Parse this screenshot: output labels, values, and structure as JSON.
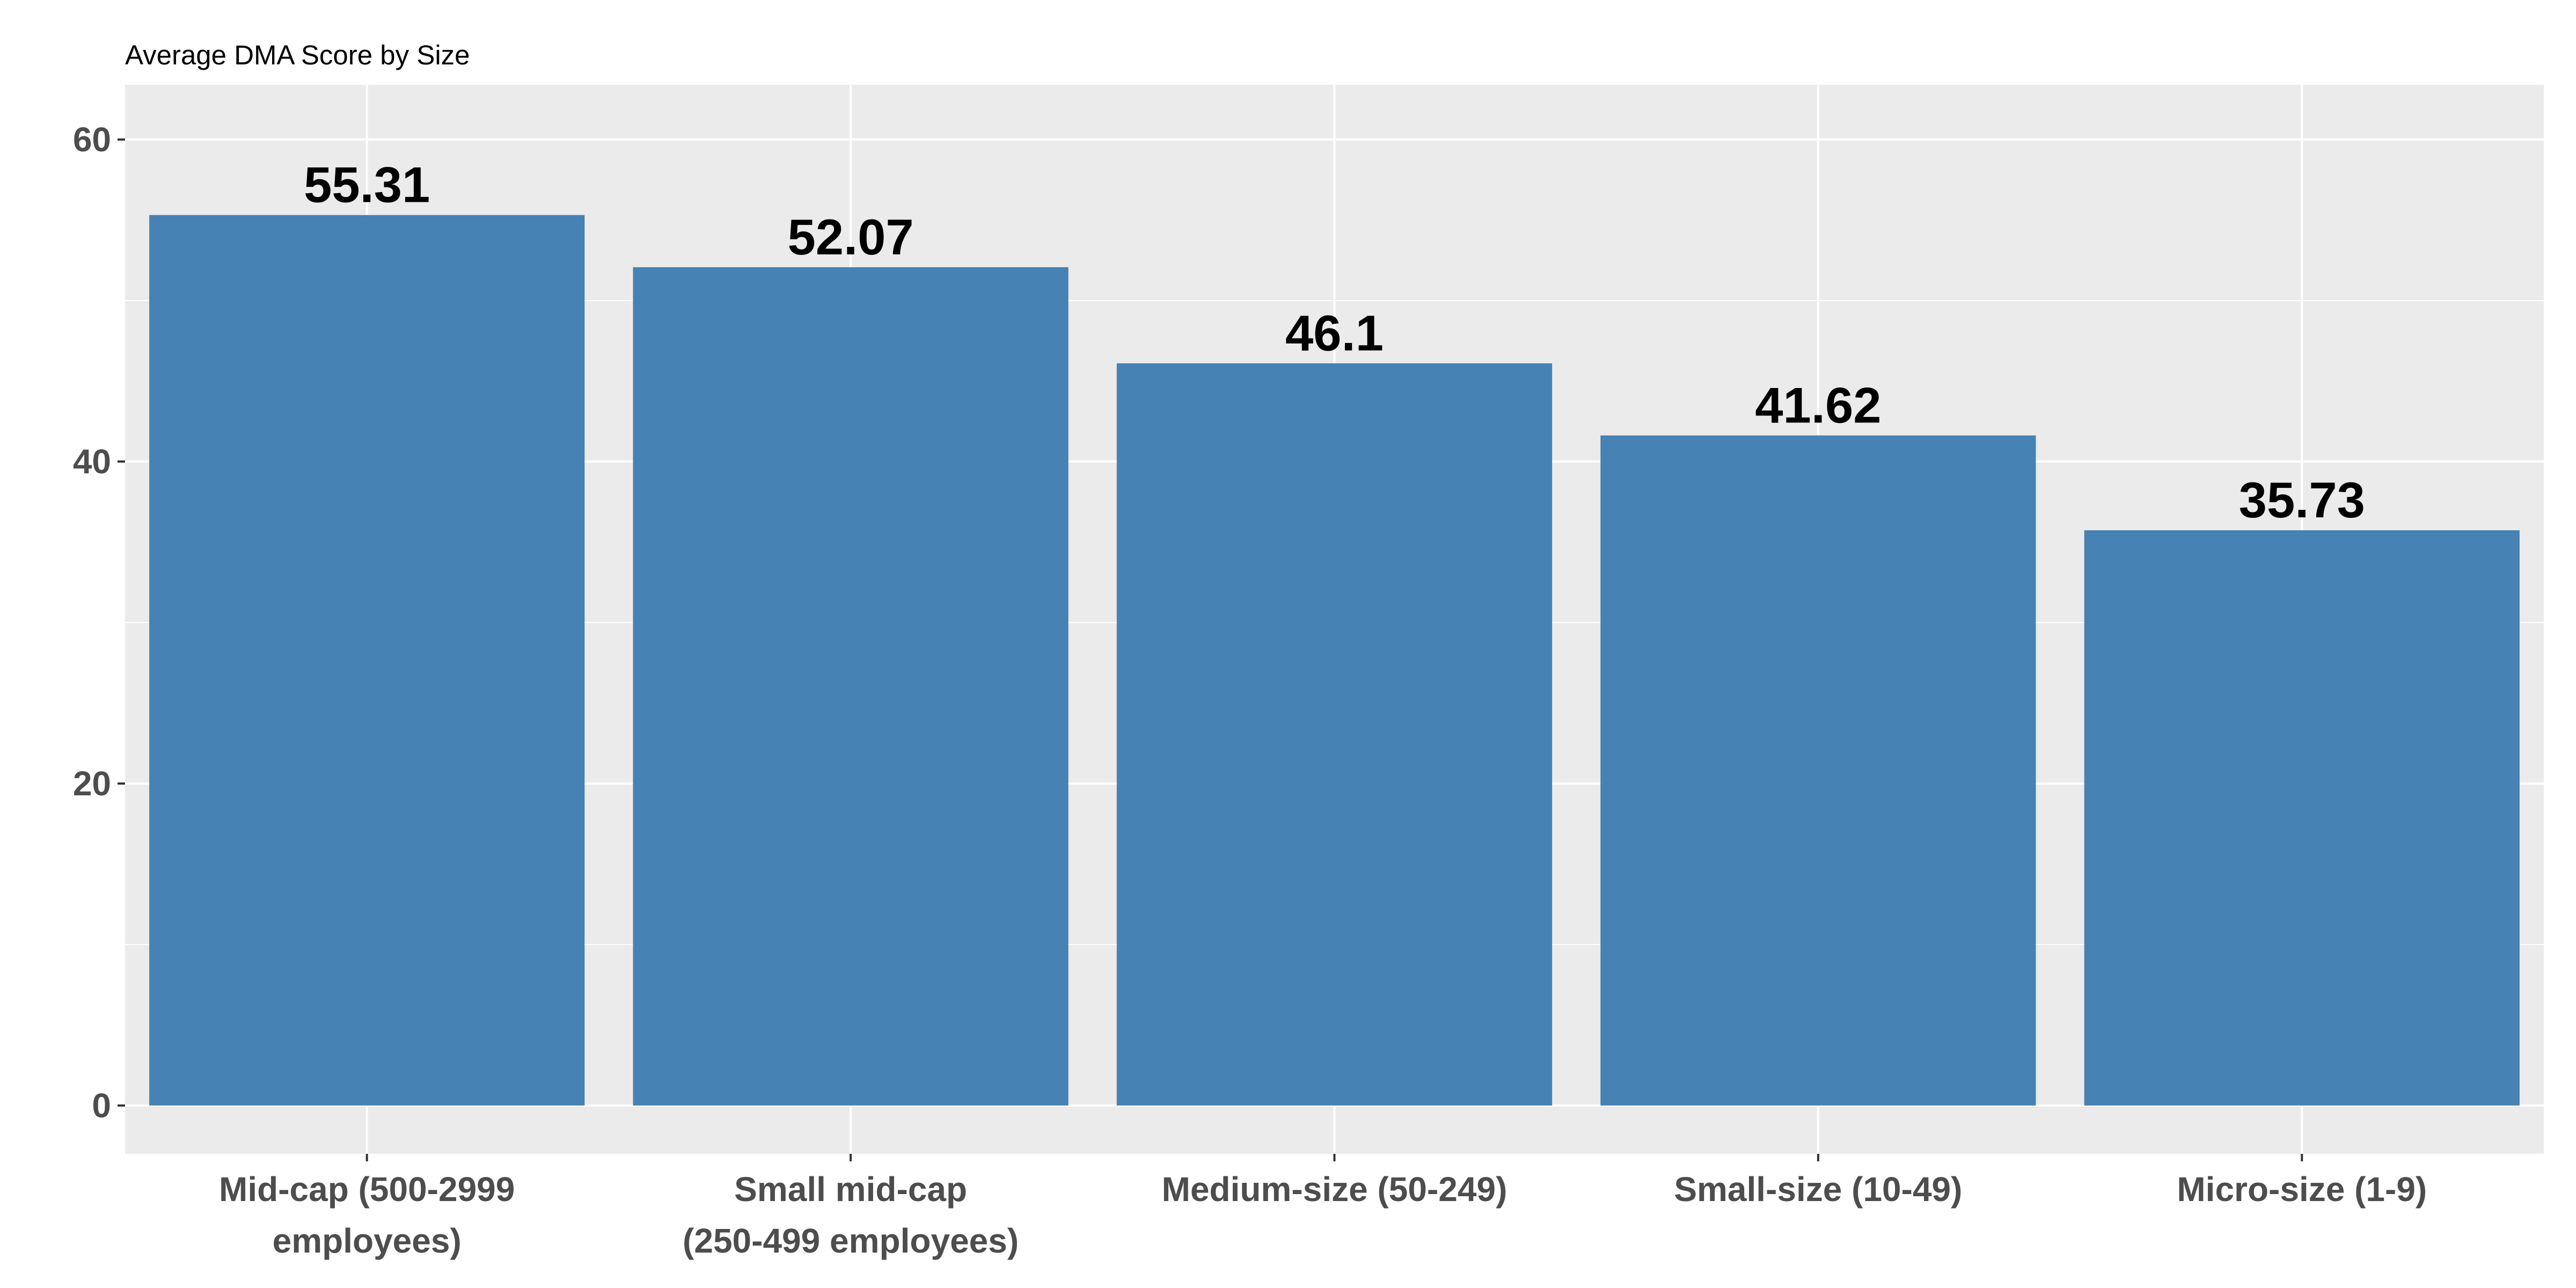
{
  "chart_data": {
    "type": "bar",
    "title": "Average DMA Score by Size",
    "xlabel": "",
    "ylabel": "",
    "categories": [
      [
        "Mid-cap (500-2999",
        "employees)"
      ],
      [
        "Small mid-cap",
        "(250-499 employees)"
      ],
      [
        "Medium-size (50-249)"
      ],
      [
        "Small-size (10-49)"
      ],
      [
        "Micro-size (1-9)"
      ]
    ],
    "values": [
      55.31,
      52.07,
      46.1,
      41.62,
      35.73
    ],
    "value_labels": [
      "55.31",
      "52.07",
      "46.1",
      "41.62",
      "35.73"
    ],
    "ylim": [
      -3.0,
      63.4
    ],
    "yticks": [
      0,
      20,
      40,
      60
    ],
    "ytick_labels": [
      "0",
      "20",
      "40",
      "60"
    ],
    "grid": true,
    "legend": "none",
    "colors": {
      "bar": "#4682b4",
      "panel": "#ebebeb",
      "grid": "#ffffff"
    }
  }
}
